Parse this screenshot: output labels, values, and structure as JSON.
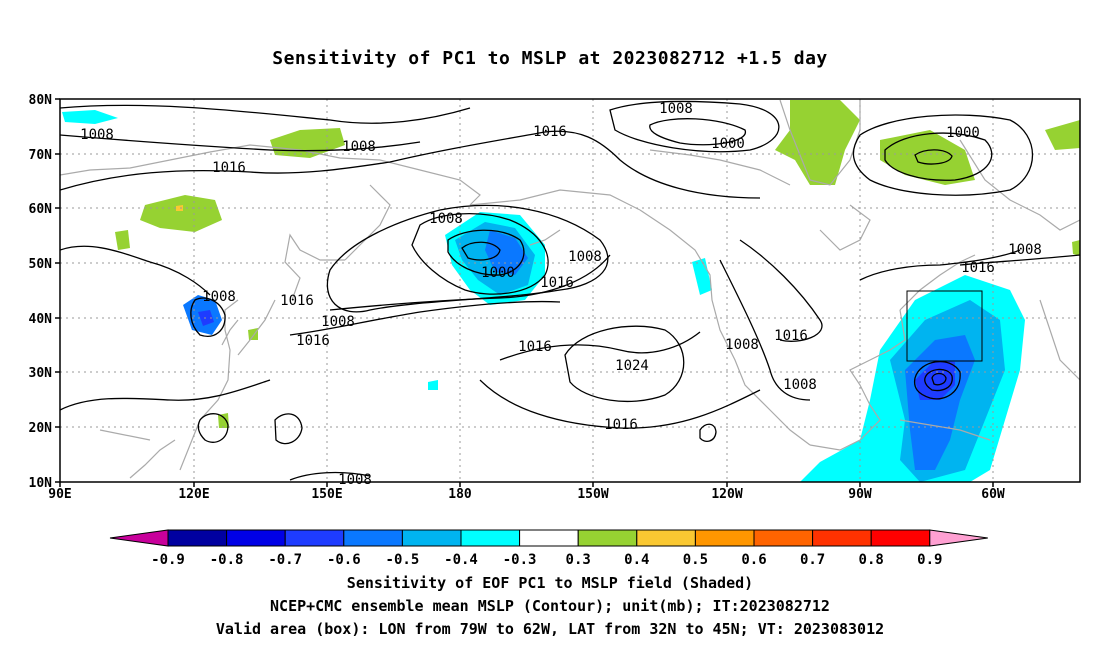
{
  "title": "Sensitivity of PC1 to MSLP at 2023082712 +1.5 day",
  "lat_labels": [
    "80N",
    "70N",
    "60N",
    "50N",
    "40N",
    "30N",
    "20N",
    "10N"
  ],
  "lon_labels": [
    "90E",
    "120E",
    "150E",
    "180",
    "150W",
    "120W",
    "90W",
    "60W"
  ],
  "contour_labels": [
    "1008",
    "1008",
    "1016",
    "1016",
    "1008",
    "1000",
    "1000",
    "1008",
    "1016",
    "1008",
    "1000",
    "1008",
    "1016",
    "1008",
    "1016",
    "1016",
    "1016",
    "1016",
    "1008",
    "1016",
    "1008",
    "1024",
    "1008",
    "1016",
    "1008"
  ],
  "colorbar": {
    "labels": [
      "-0.9",
      "-0.8",
      "-0.7",
      "-0.6",
      "-0.5",
      "-0.4",
      "-0.3",
      "0.3",
      "0.4",
      "0.5",
      "0.6",
      "0.7",
      "0.8",
      "0.9"
    ],
    "colors": [
      "#0000a0",
      "#0000e6",
      "#1e3cff",
      "#0a78ff",
      "#00b4f0",
      "#00ffff",
      "#ffffff",
      "#96d232",
      "#fac832",
      "#ff9600",
      "#ff6400",
      "#ff3200",
      "#ff0000"
    ],
    "low_end_color": "#c8009b",
    "high_end_color": "#ffa0d2"
  },
  "captions": [
    "Sensitivity of EOF PC1 to MSLP field (Shaded)",
    "NCEP+CMC ensemble mean MSLP (Contour); unit(mb); IT:2023082712",
    "Valid area (box): LON from 79W to 62W, LAT from 32N to 45N; VT: 2023083012"
  ],
  "valid_box": {
    "lon_min": -79,
    "lon_max": -62,
    "lat_min": 32,
    "lat_max": 45
  },
  "colors": {
    "coast": "#aaaaaa",
    "contour": "#000000",
    "grid": "#9a9a9a"
  }
}
